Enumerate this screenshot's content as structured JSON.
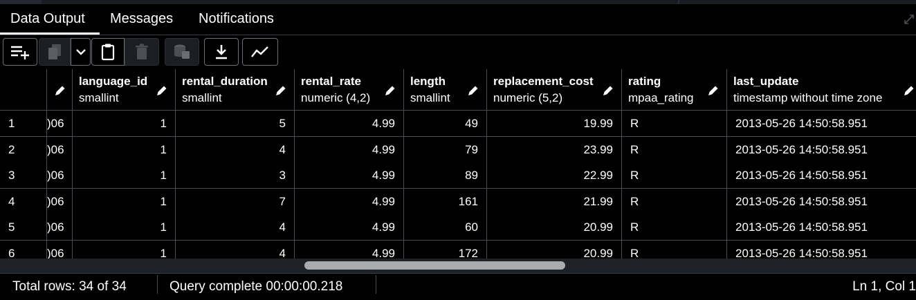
{
  "tabs": [
    {
      "label": "Data Output",
      "active": true
    },
    {
      "label": "Messages",
      "active": false
    },
    {
      "label": "Notifications",
      "active": false
    }
  ],
  "toolbar": {
    "icons": [
      "add-row-icon",
      "copy-icon",
      "chevron-down-icon",
      "paste-icon",
      "delete-icon",
      "save-data-icon",
      "download-icon",
      "graph-icon"
    ]
  },
  "columns": [
    {
      "name": "language_id",
      "type": "smallint"
    },
    {
      "name": "rental_duration",
      "type": "smallint"
    },
    {
      "name": "rental_rate",
      "type": "numeric (4,2)"
    },
    {
      "name": "length",
      "type": "smallint"
    },
    {
      "name": "replacement_cost",
      "type": "numeric (5,2)"
    },
    {
      "name": "rating",
      "type": "mpaa_rating"
    },
    {
      "name": "last_update",
      "type": "timestamp without time zone"
    }
  ],
  "rows": [
    {
      "n": "1",
      "clip": ")06",
      "c": [
        "1",
        "5",
        "4.99",
        "49",
        "19.99",
        "R",
        "2013-05-26 14:50:58.951"
      ]
    },
    {
      "n": "2",
      "clip": ")06",
      "c": [
        "1",
        "4",
        "4.99",
        "79",
        "23.99",
        "R",
        "2013-05-26 14:50:58.951"
      ]
    },
    {
      "n": "3",
      "clip": ")06",
      "c": [
        "1",
        "3",
        "4.99",
        "89",
        "22.99",
        "R",
        "2013-05-26 14:50:58.951"
      ]
    },
    {
      "n": "4",
      "clip": ")06",
      "c": [
        "1",
        "7",
        "4.99",
        "161",
        "21.99",
        "R",
        "2013-05-26 14:50:58.951"
      ]
    },
    {
      "n": "5",
      "clip": ")06",
      "c": [
        "1",
        "4",
        "4.99",
        "60",
        "20.99",
        "R",
        "2013-05-26 14:50:58.951"
      ]
    },
    {
      "n": "6",
      "clip": ")06",
      "c": [
        "1",
        "4",
        "4.99",
        "172",
        "20.99",
        "R",
        "2013-05-26 14:50:58.951"
      ]
    }
  ],
  "status": {
    "total_rows": "Total rows: 34 of 34",
    "query": "Query complete 00:00:00.218",
    "position": "Ln 1, Col 1"
  },
  "colors": {
    "background": "#000000",
    "border": "#4a4e54",
    "scroll_thumb": "#a9acaf"
  }
}
